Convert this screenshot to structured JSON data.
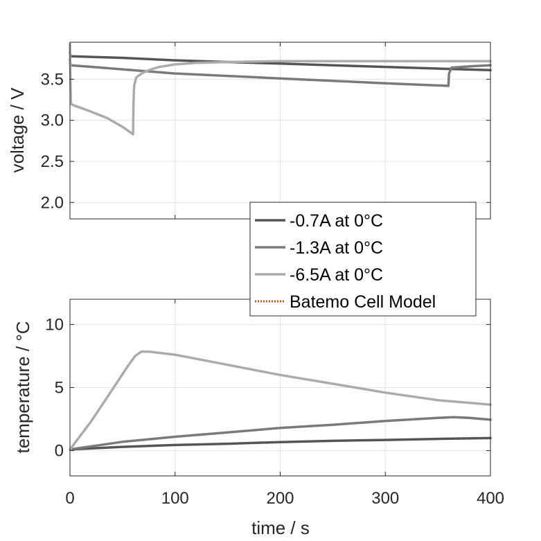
{
  "chart_data": [
    {
      "type": "line",
      "title": "",
      "xlabel": "",
      "ylabel": "voltage / V",
      "xlim": [
        0,
        400
      ],
      "ylim": [
        1.8,
        3.95
      ],
      "yticks": [
        "2.0",
        "2.5",
        "3.0",
        "3.5"
      ],
      "ytick_values": [
        2.0,
        2.5,
        3.0,
        3.5
      ],
      "xticks": [
        0,
        100,
        200,
        300,
        400
      ],
      "grid": true,
      "series": [
        {
          "name": "-0.7A at 0°C",
          "color": "#555555",
          "x": [
            0,
            0.6,
            50,
            100,
            150,
            200,
            250,
            300,
            350,
            400
          ],
          "y": [
            3.82,
            3.78,
            3.76,
            3.73,
            3.71,
            3.69,
            3.67,
            3.65,
            3.63,
            3.61
          ]
        },
        {
          "name": "-1.3A at 0°C",
          "color": "#7a7a7a",
          "x": [
            0,
            0.6,
            50,
            100,
            150,
            200,
            250,
            300,
            340,
            360,
            360.6,
            363,
            372,
            385,
            400
          ],
          "y": [
            3.74,
            3.67,
            3.62,
            3.57,
            3.54,
            3.51,
            3.48,
            3.45,
            3.43,
            3.42,
            3.57,
            3.64,
            3.65,
            3.66,
            3.67
          ]
        },
        {
          "name": "-6.5A at 0°C",
          "color": "#ababab",
          "x": [
            0,
            0.3,
            1,
            4,
            15,
            35,
            50,
            60,
            60.4,
            61,
            63,
            68,
            75,
            85,
            100,
            120,
            150,
            200,
            300,
            400
          ],
          "y": [
            3.93,
            3.6,
            3.2,
            3.18,
            3.13,
            3.03,
            2.92,
            2.83,
            3.2,
            3.42,
            3.52,
            3.57,
            3.61,
            3.65,
            3.68,
            3.7,
            3.71,
            3.72,
            3.72,
            3.72
          ]
        }
      ]
    },
    {
      "type": "line",
      "title": "",
      "xlabel": "time / s",
      "ylabel": "temperature / °C",
      "xlim": [
        0,
        400
      ],
      "ylim": [
        -2,
        12
      ],
      "yticks": [
        "0",
        "5",
        "10"
      ],
      "ytick_values": [
        0,
        5,
        10
      ],
      "xticks": [
        "0",
        "100",
        "200",
        "300",
        "400"
      ],
      "xtick_values": [
        0,
        100,
        200,
        300,
        400
      ],
      "grid": true,
      "series": [
        {
          "name": "-0.7A at 0°C",
          "color": "#555555",
          "x": [
            0,
            50,
            100,
            150,
            200,
            250,
            300,
            350,
            400
          ],
          "y": [
            0.1,
            0.3,
            0.45,
            0.55,
            0.68,
            0.78,
            0.85,
            0.93,
            1.0
          ]
        },
        {
          "name": "-1.3A at 0°C",
          "color": "#7a7a7a",
          "x": [
            0,
            50,
            100,
            150,
            200,
            250,
            300,
            350,
            365,
            380,
            400
          ],
          "y": [
            0.1,
            0.7,
            1.1,
            1.45,
            1.8,
            2.05,
            2.35,
            2.6,
            2.65,
            2.6,
            2.45
          ]
        },
        {
          "name": "-6.5A at 0°C",
          "color": "#ababab",
          "x": [
            0,
            20,
            40,
            55,
            62,
            68,
            75,
            100,
            150,
            200,
            250,
            300,
            350,
            400
          ],
          "y": [
            0.1,
            2.3,
            4.8,
            6.7,
            7.5,
            7.85,
            7.85,
            7.6,
            6.8,
            6.0,
            5.3,
            4.6,
            4.0,
            3.65
          ]
        }
      ]
    }
  ],
  "legend": {
    "placement": "center-right",
    "entries": [
      {
        "label": "-0.7A at 0°C",
        "color": "#555555",
        "style": "solid"
      },
      {
        "label": "-1.3A at 0°C",
        "color": "#7a7a7a",
        "style": "solid"
      },
      {
        "label": "-6.5A at 0°C",
        "color": "#ababab",
        "style": "solid"
      },
      {
        "label": "Batemo Cell Model",
        "color": "#D95319",
        "style": "dotted"
      }
    ]
  }
}
